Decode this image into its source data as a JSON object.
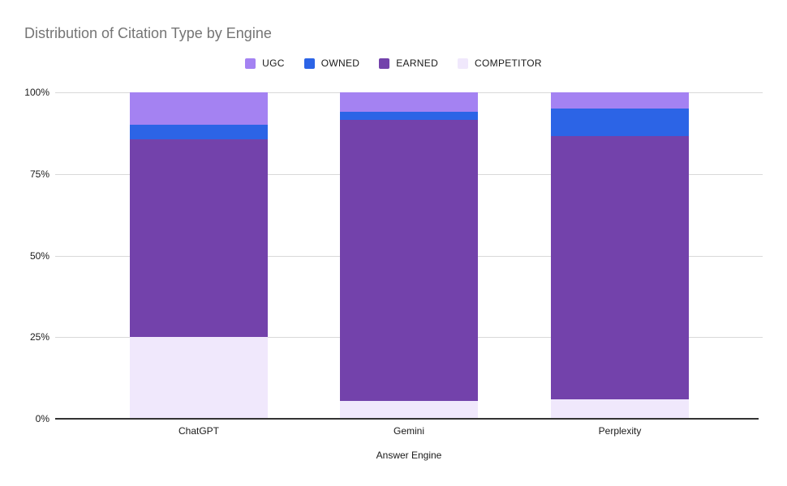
{
  "title": "Distribution of Citation Type by Engine",
  "colors": {
    "background": "#ffffff",
    "title_text": "#757575",
    "gridline": "#d9d9d9",
    "axis_line": "#333333",
    "tick_text": "#1a1a1a",
    "ugc": "#a482f2",
    "owned": "#2c64e6",
    "earned": "#7342ab",
    "competitor": "#f0e8fc"
  },
  "y_axis": {
    "ticks": [
      "100%",
      "75%",
      "50%",
      "25%",
      "0%"
    ]
  },
  "x_axis": {
    "title": "Answer Engine"
  },
  "chart_data": {
    "type": "bar",
    "subtype": "stacked-100-percent",
    "title": "Distribution of Citation Type by Engine",
    "categories": [
      "ChatGPT",
      "Gemini",
      "Perplexity"
    ],
    "series": [
      {
        "name": "UGC",
        "color": "#a482f2",
        "values": [
          10,
          6,
          5
        ]
      },
      {
        "name": "OWNED",
        "color": "#2c64e6",
        "values": [
          4.5,
          2.5,
          8.5
        ]
      },
      {
        "name": "EARNED",
        "color": "#7342ab",
        "values": [
          60.5,
          86,
          80.5
        ]
      },
      {
        "name": "COMPETITOR",
        "color": "#f0e8fc",
        "values": [
          25,
          5.5,
          6
        ]
      }
    ],
    "xlabel": "Answer Engine",
    "ylabel": "",
    "ylim": [
      0,
      100
    ],
    "y_tick_labels": [
      "0%",
      "25%",
      "50%",
      "75%",
      "100%"
    ],
    "grid": "horizontal",
    "legend_position": "top"
  }
}
